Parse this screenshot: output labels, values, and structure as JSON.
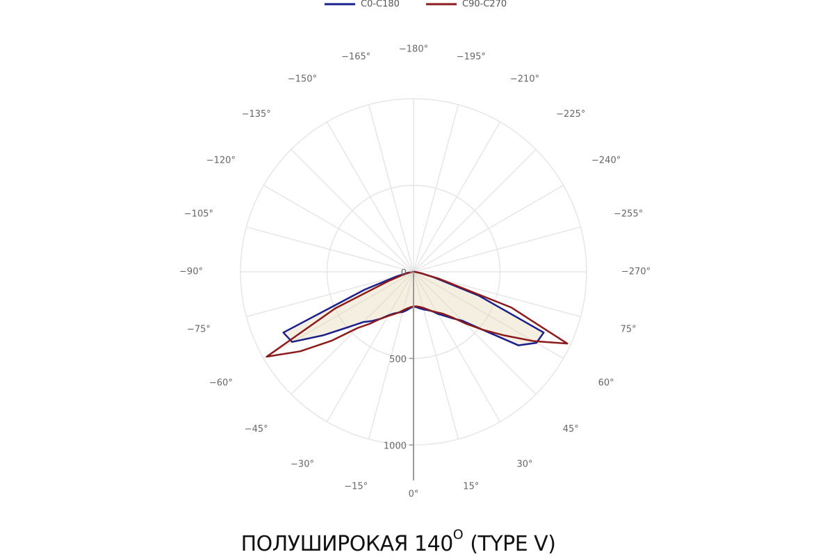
{
  "chart_data": {
    "type": "polar",
    "title": "ПОЛУШИРОКАЯ 140",
    "title_superscript": "O",
    "title_suffix": "(TYPE V)",
    "theta": [
      -90,
      -85,
      -80,
      -75,
      -70,
      -65,
      -60,
      -55,
      -50,
      -45,
      -40,
      -35,
      -30,
      -25,
      -20,
      -15,
      -10,
      -5,
      0,
      5,
      10,
      15,
      20,
      25,
      30,
      35,
      40,
      45,
      50,
      55,
      60,
      65,
      70,
      75,
      80,
      85,
      90
    ],
    "series": [
      {
        "name": "C0-C180",
        "color": "#1a1f8c",
        "values": [
          5,
          12,
          35,
          100,
          300,
          830,
          810,
          640,
          500,
          410,
          370,
          330,
          290,
          265,
          250,
          240,
          225,
          210,
          200,
          205,
          215,
          225,
          235,
          250,
          280,
          310,
          350,
          400,
          520,
          740,
          820,
          830,
          400,
          120,
          40,
          15,
          5
        ]
      },
      {
        "name": "C90-C270",
        "color": "#8b1a1a",
        "values": [
          5,
          10,
          25,
          60,
          150,
          500,
          980,
          800,
          620,
          460,
          390,
          330,
          295,
          270,
          250,
          230,
          215,
          205,
          200,
          200,
          205,
          215,
          230,
          250,
          270,
          295,
          340,
          420,
          520,
          640,
          800,
          980,
          600,
          150,
          40,
          15,
          5
        ]
      }
    ],
    "rlim": [
      0,
      1000
    ],
    "rticks": [
      0,
      500,
      1000
    ],
    "angular_ticks": [
      {
        "value": 0,
        "label": "0°"
      },
      {
        "value": 15,
        "label": "15°"
      },
      {
        "value": 30,
        "label": "30°"
      },
      {
        "value": 45,
        "label": "45°"
      },
      {
        "value": 60,
        "label": "60°"
      },
      {
        "value": 75,
        "label": "75°"
      },
      {
        "value": -270,
        "label": "−270°"
      },
      {
        "value": -255,
        "label": "−255°"
      },
      {
        "value": -240,
        "label": "−240°"
      },
      {
        "value": -225,
        "label": "−225°"
      },
      {
        "value": -210,
        "label": "−210°"
      },
      {
        "value": -195,
        "label": "−195°"
      },
      {
        "value": -180,
        "label": "−180°"
      },
      {
        "value": -165,
        "label": "−165°"
      },
      {
        "value": -150,
        "label": "−150°"
      },
      {
        "value": -135,
        "label": "−135°"
      },
      {
        "value": -120,
        "label": "−120°"
      },
      {
        "value": -105,
        "label": "−105°"
      },
      {
        "value": -90,
        "label": "−90°"
      },
      {
        "value": -75,
        "label": "−75°"
      },
      {
        "value": -60,
        "label": "−60°"
      },
      {
        "value": -45,
        "label": "−45°"
      },
      {
        "value": -30,
        "label": "−30°"
      },
      {
        "value": -15,
        "label": "−15°"
      }
    ],
    "grid": true
  }
}
